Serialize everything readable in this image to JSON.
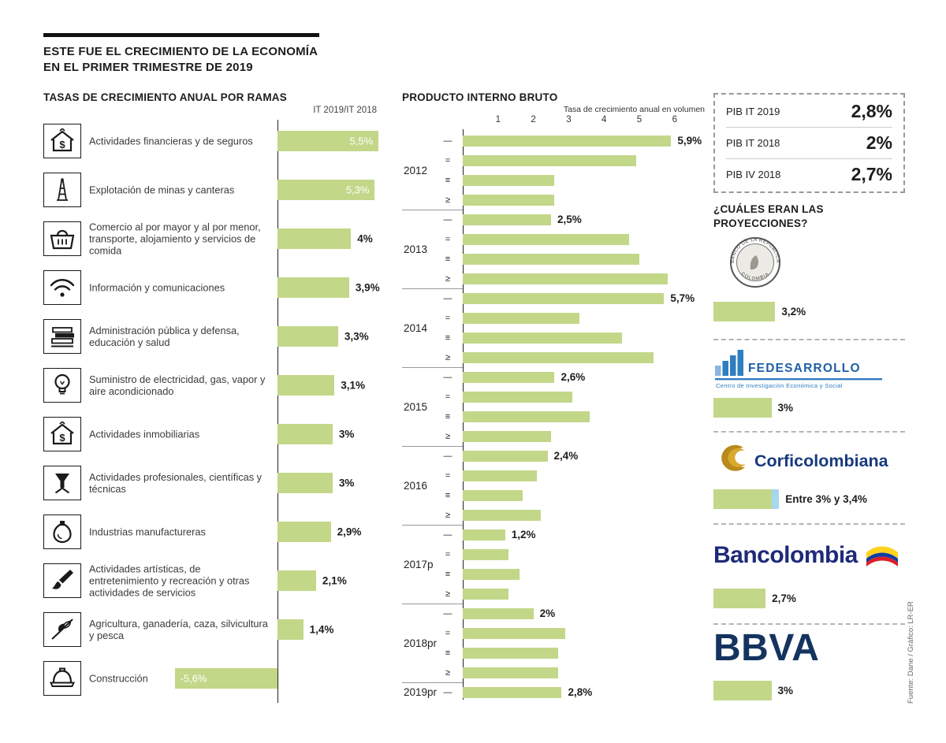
{
  "header": {
    "title_line1": "ESTE FUE EL CRECIMIENTO DE LA ECONOMÍA",
    "title_line2": "EN EL PRIMER TRIMESTRE DE 2019"
  },
  "summary_box": {
    "rows": [
      {
        "label": "PIB IT 2019",
        "value": "2,8%"
      },
      {
        "label": "PIB IT 2018",
        "value": "2%"
      },
      {
        "label": "PIB IV 2018",
        "value": "2,7%"
      }
    ]
  },
  "projections_heading": {
    "line1": "¿CUÁLES ERAN LAS",
    "line2": "PROYECCIONES?"
  },
  "footer": {
    "source": "Fuente: Dane / Gráfico: LR-ER"
  },
  "colors": {
    "bar_green": "#c3d789",
    "range_blue": "#a5d8ea",
    "fedesarrollo_blue": "#2f7ec0",
    "corficolombiana_gold": "#b9891c",
    "corficolombiana_navy": "#173a7c",
    "bancolombia_navy": "#1e2a78",
    "bbva_navy": "#14345f"
  },
  "chart_data": [
    {
      "type": "bar",
      "orientation": "horizontal",
      "title": "TASAS DE CRECIMIENTO ANUAL POR RAMAS",
      "column_header": "IT 2019/IT 2018",
      "unit": "%",
      "items": [
        {
          "icon": "finance-house-icon",
          "label": "Actividades financieras y de seguros",
          "value": 5.5,
          "display": "5,5%",
          "value_inside": true
        },
        {
          "icon": "oil-derrick-icon",
          "label": "Explotación de minas y canteras",
          "value": 5.3,
          "display": "5,3%",
          "value_inside": true
        },
        {
          "icon": "shopping-basket-icon",
          "label": "Comercio al por mayor y al por menor, transporte, alojamiento y servicios de comida",
          "value": 4,
          "display": "4%",
          "value_inside": false
        },
        {
          "icon": "wifi-icon",
          "label": "Información y comunicaciones",
          "value": 3.9,
          "display": "3,9%",
          "value_inside": false
        },
        {
          "icon": "books-icon",
          "label": "Administración pública y defensa, educación y salud",
          "value": 3.3,
          "display": "3,3%",
          "value_inside": false
        },
        {
          "icon": "lightbulb-icon",
          "label": "Suministro de electricidad, gas, vapor y aire acondicionado",
          "value": 3.1,
          "display": "3,1%",
          "value_inside": false
        },
        {
          "icon": "realestate-house-icon",
          "label": "Actividades inmobiliarias",
          "value": 3,
          "display": "3%",
          "value_inside": false
        },
        {
          "icon": "funnel-flask-icon",
          "label": "Actividades profesionales, científicas y técnicas",
          "value": 3,
          "display": "3%",
          "value_inside": false
        },
        {
          "icon": "industrial-flask-icon",
          "label": "Industrias manufactureras",
          "value": 2.9,
          "display": "2,9%",
          "value_inside": false
        },
        {
          "icon": "paintbrush-icon",
          "label": "Actividades artísticas, de entretenimiento y recreación y otras actividades de servicios",
          "value": 2.1,
          "display": "2,1%",
          "value_inside": false
        },
        {
          "icon": "plant-branch-icon",
          "label": "Agricultura, ganadería, caza, silvicultura y pesca",
          "value": 1.4,
          "display": "1,4%",
          "value_inside": false
        },
        {
          "icon": "hardhat-icon",
          "label": "Construcción",
          "value": -5.6,
          "display": "-5,6%",
          "value_inside": true
        }
      ]
    },
    {
      "type": "bar",
      "orientation": "horizontal",
      "title": "PRODUCTO INTERNO BRUTO",
      "subtitle": "Tasa de crecimiento anual en volumen",
      "unit": "%",
      "xlim": [
        0,
        6
      ],
      "x_ticks": [
        1,
        2,
        3,
        4,
        5,
        6
      ],
      "quarter_symbols": [
        "—",
        "=",
        "≡",
        "≥"
      ],
      "groups": [
        {
          "year": "2012",
          "values": [
            5.9,
            4.9,
            2.6,
            2.6
          ],
          "first_label": "5,9%"
        },
        {
          "year": "2013",
          "values": [
            2.5,
            4.7,
            5.0,
            5.8
          ],
          "first_label": "2,5%"
        },
        {
          "year": "2014",
          "values": [
            5.7,
            3.3,
            4.5,
            5.4
          ],
          "first_label": "5,7%"
        },
        {
          "year": "2015",
          "values": [
            2.6,
            3.1,
            3.6,
            2.5
          ],
          "first_label": "2,6%"
        },
        {
          "year": "2016",
          "values": [
            2.4,
            2.1,
            1.7,
            2.2
          ],
          "first_label": "2,4%"
        },
        {
          "year": "2017p",
          "values": [
            1.2,
            1.3,
            1.6,
            1.3
          ],
          "first_label": "1,2%"
        },
        {
          "year": "2018pr",
          "values": [
            2.0,
            2.9,
            2.7,
            2.7
          ],
          "first_label": "2%"
        },
        {
          "year": "2019pr",
          "values": [
            2.8
          ],
          "first_label": "2,8%"
        }
      ]
    },
    {
      "type": "bar",
      "orientation": "horizontal",
      "title": "¿CUÁLES ERAN LAS PROYECCIONES?",
      "unit": "%",
      "items": [
        {
          "name": "Banco de la República",
          "logo": "banco-republica-seal",
          "seal_top": "BANCO DE LA REPÚBLICA",
          "seal_bottom": "COLOMBIA",
          "value": 3.2,
          "display": "3,2%"
        },
        {
          "name": "Fedesarrollo",
          "logo": "fedesarrollo-logo",
          "logo_text": "FEDESARROLLO",
          "logo_subtitle": "Centro de Investigación Económica y Social",
          "value": 3,
          "display": "3%"
        },
        {
          "name": "Corficolombiana",
          "logo": "corficolombiana-logo",
          "logo_text": "Corficolombiana",
          "value": 3,
          "value_max": 3.4,
          "display": "Entre 3% y 3,4%"
        },
        {
          "name": "Bancolombia",
          "logo": "bancolombia-logo",
          "logo_text": "Bancolombia",
          "value": 2.7,
          "display": "2,7%"
        },
        {
          "name": "BBVA",
          "logo": "bbva-logo",
          "logo_text": "BBVA",
          "value": 3,
          "display": "3%"
        }
      ]
    }
  ]
}
